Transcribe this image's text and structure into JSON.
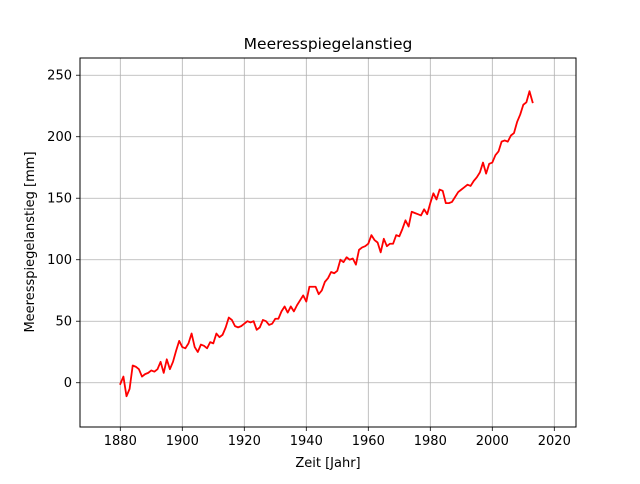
{
  "chart_data": {
    "type": "line",
    "title": "Meeresspiegelanstieg",
    "xlabel": "Zeit [Jahr]",
    "ylabel": "Meeresspiegelanstieg [mm]",
    "xlim": [
      1867,
      2027
    ],
    "ylim": [
      -36,
      264
    ],
    "xticks": [
      1880,
      1900,
      1920,
      1940,
      1960,
      1980,
      2000,
      2020
    ],
    "yticks": [
      0,
      50,
      100,
      150,
      200,
      250
    ],
    "grid": true,
    "series": [
      {
        "color": "#ff0000",
        "x": [
          1880,
          1881,
          1882,
          1883,
          1884,
          1885,
          1886,
          1887,
          1888,
          1889,
          1890,
          1891,
          1892,
          1893,
          1894,
          1895,
          1896,
          1897,
          1898,
          1899,
          1900,
          1901,
          1902,
          1903,
          1904,
          1905,
          1906,
          1907,
          1908,
          1909,
          1910,
          1911,
          1912,
          1913,
          1914,
          1915,
          1916,
          1917,
          1918,
          1919,
          1920,
          1921,
          1922,
          1923,
          1924,
          1925,
          1926,
          1927,
          1928,
          1929,
          1930,
          1931,
          1932,
          1933,
          1934,
          1935,
          1936,
          1937,
          1938,
          1939,
          1940,
          1941,
          1942,
          1943,
          1944,
          1945,
          1946,
          1947,
          1948,
          1949,
          1950,
          1951,
          1952,
          1953,
          1954,
          1955,
          1956,
          1957,
          1958,
          1959,
          1960,
          1961,
          1962,
          1963,
          1964,
          1965,
          1966,
          1967,
          1968,
          1969,
          1970,
          1971,
          1972,
          1973,
          1974,
          1975,
          1976,
          1977,
          1978,
          1979,
          1980,
          1981,
          1982,
          1983,
          1984,
          1985,
          1986,
          1987,
          1988,
          1989,
          1990,
          1991,
          1992,
          1993,
          1994,
          1995,
          1996,
          1997,
          1998,
          1999,
          2000,
          2001,
          2002,
          2003,
          2004,
          2005,
          2006,
          2007,
          2008,
          2009,
          2010,
          2011,
          2012,
          2013
        ],
        "y": [
          -1,
          5,
          -11,
          -5,
          14,
          13,
          11,
          5,
          7,
          8,
          10,
          9,
          11,
          17,
          8,
          19,
          11,
          17,
          26,
          34,
          29,
          28,
          32,
          40,
          29,
          25,
          31,
          30,
          28,
          33,
          32,
          40,
          37,
          39,
          45,
          53,
          51,
          46,
          45,
          46,
          48,
          50,
          49,
          50,
          43,
          45,
          51,
          50,
          47,
          48,
          52,
          52,
          58,
          62,
          57,
          62,
          58,
          63,
          67,
          71,
          66,
          78,
          78,
          78,
          72,
          75,
          82,
          85,
          90,
          89,
          91,
          100,
          98,
          102,
          100,
          101,
          96,
          108,
          110,
          111,
          113,
          120,
          116,
          114,
          106,
          117,
          111,
          113,
          113,
          120,
          119,
          125,
          132,
          127,
          139,
          138,
          137,
          136,
          141,
          137,
          146,
          154,
          149,
          157,
          156,
          146,
          146,
          147,
          151,
          155,
          157,
          159,
          161,
          160,
          164,
          167,
          171,
          179,
          170,
          178,
          179,
          185,
          188,
          196,
          197,
          196,
          201,
          203,
          212,
          218,
          226,
          228,
          237,
          228
        ]
      }
    ]
  }
}
